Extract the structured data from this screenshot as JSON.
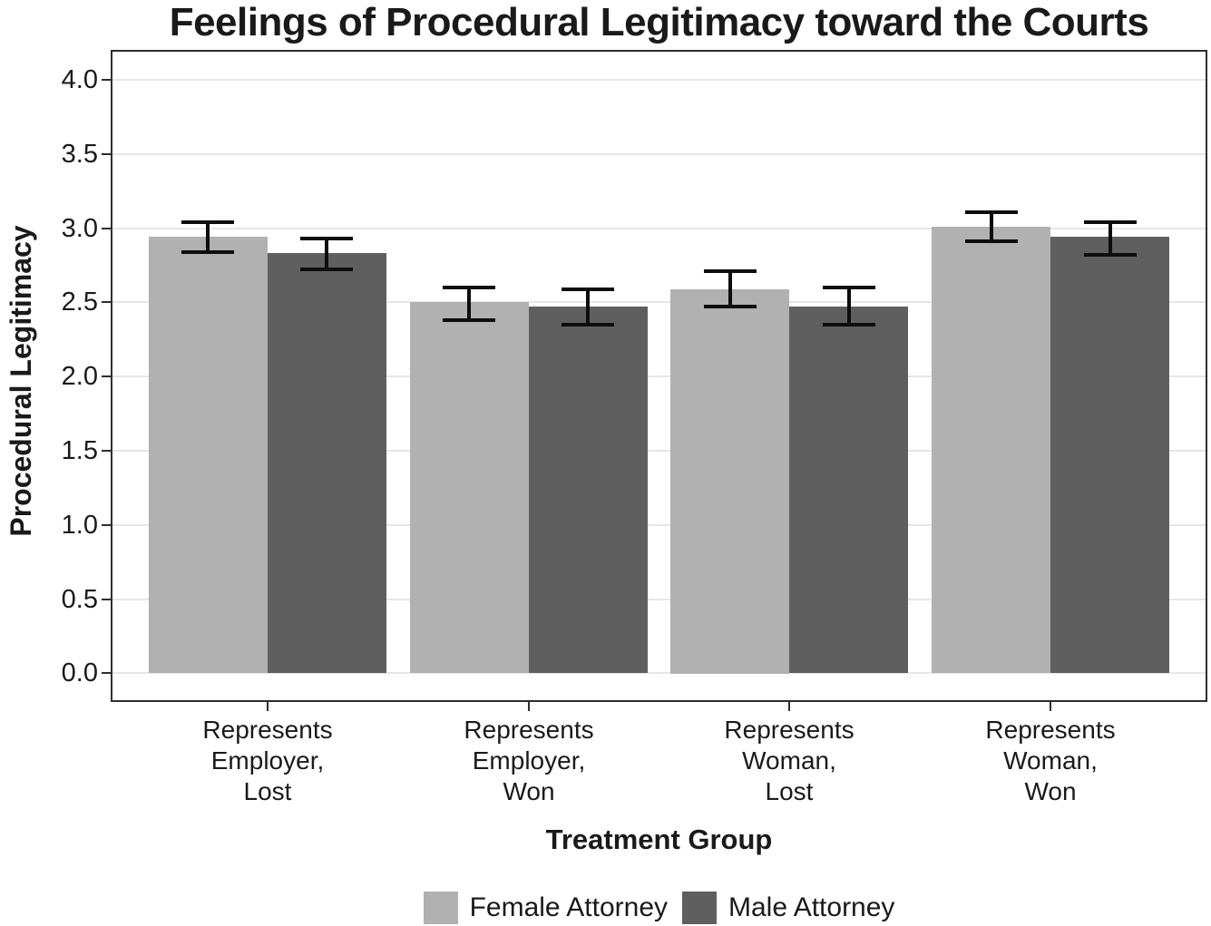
{
  "title": "Feelings of Procedural Legitimacy toward the Courts",
  "colors": {
    "female_bar": "#b1b1b1",
    "male_bar": "#5f5f5f",
    "gridline": "#e7e7e7",
    "panel_border": "#2e2e2e",
    "error_bar": "#0d0d0d"
  },
  "y_axis": {
    "ticks": [
      "0.0",
      "0.5",
      "1.0",
      "1.5",
      "2.0",
      "2.5",
      "3.0",
      "3.5",
      "4.0"
    ]
  },
  "chart_data": {
    "type": "bar",
    "title": "Feelings of Procedural Legitimacy toward the Courts",
    "xlabel": "Treatment Group",
    "ylabel": "Procedural Legitimacy",
    "ylim": [
      0,
      4.0
    ],
    "ytick_step": 0.5,
    "grid": "horizontal-major",
    "legend_position": "bottom",
    "error_bars": true,
    "categories": [
      "Represents Employer, Lost",
      "Represents Employer, Won",
      "Represents Woman, Lost",
      "Represents Woman, Won"
    ],
    "category_lines": [
      [
        "Represents",
        "Employer,",
        "Lost"
      ],
      [
        "Represents",
        "Employer,",
        "Won"
      ],
      [
        "Represents",
        "Woman,",
        "Lost"
      ],
      [
        "Represents",
        "Woman,",
        "Won"
      ]
    ],
    "series": [
      {
        "name": "Female Attorney",
        "color": "#b1b1b1",
        "values": [
          2.94,
          2.5,
          2.59,
          3.01
        ],
        "ci_low": [
          2.84,
          2.38,
          2.47,
          2.91
        ],
        "ci_high": [
          3.04,
          2.6,
          2.71,
          3.11
        ]
      },
      {
        "name": "Male Attorney",
        "color": "#5f5f5f",
        "values": [
          2.83,
          2.47,
          2.47,
          2.94
        ],
        "ci_low": [
          2.72,
          2.35,
          2.35,
          2.82
        ],
        "ci_high": [
          2.93,
          2.59,
          2.6,
          3.04
        ]
      }
    ]
  }
}
